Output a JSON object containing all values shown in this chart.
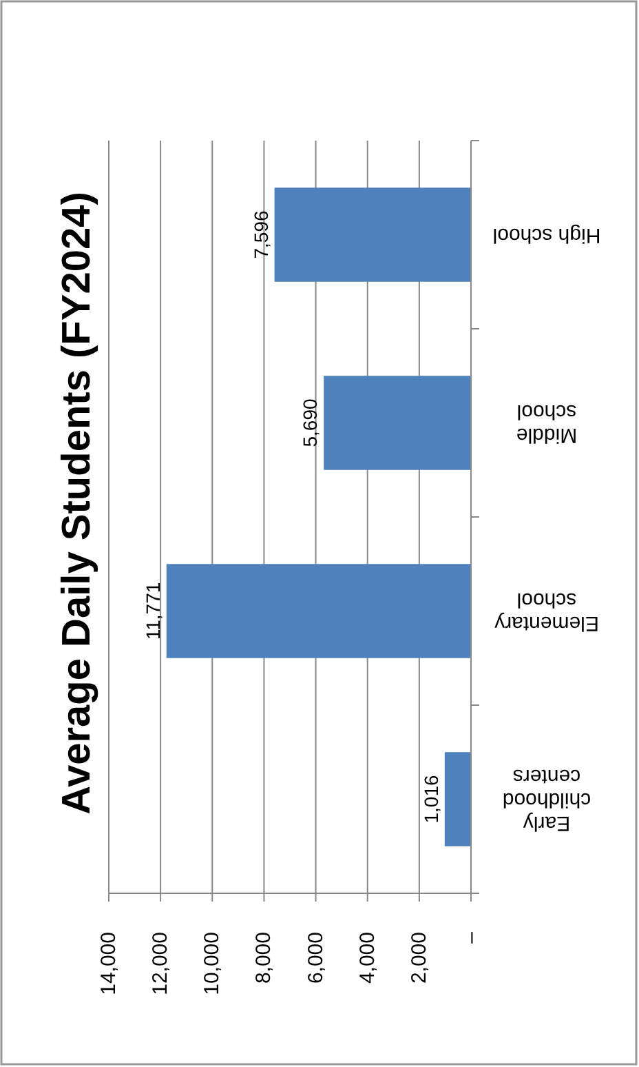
{
  "chart_data": {
    "type": "bar",
    "orientation": "horizontal",
    "title": "Average Daily Students (FY2024)",
    "categories": [
      "High school",
      "Middle school",
      "Elementary school",
      "Early childhood centers"
    ],
    "values": [
      7596,
      5690,
      11771,
      1016
    ],
    "value_labels": [
      "7,596",
      "5,690",
      "11,771",
      "1,016"
    ],
    "color": "#4f81bd",
    "xlim": [
      14000,
      0
    ],
    "xticks": [
      {
        "value": 14000,
        "label": "14,000"
      },
      {
        "value": 12000,
        "label": "12,000"
      },
      {
        "value": 10000,
        "label": "10,000"
      },
      {
        "value": 8000,
        "label": "8,000"
      },
      {
        "value": 6000,
        "label": "6,000"
      },
      {
        "value": 4000,
        "label": "4,000"
      },
      {
        "value": 2000,
        "label": "2,000"
      },
      {
        "value": 0,
        "label": "–"
      }
    ],
    "grid": "x"
  }
}
